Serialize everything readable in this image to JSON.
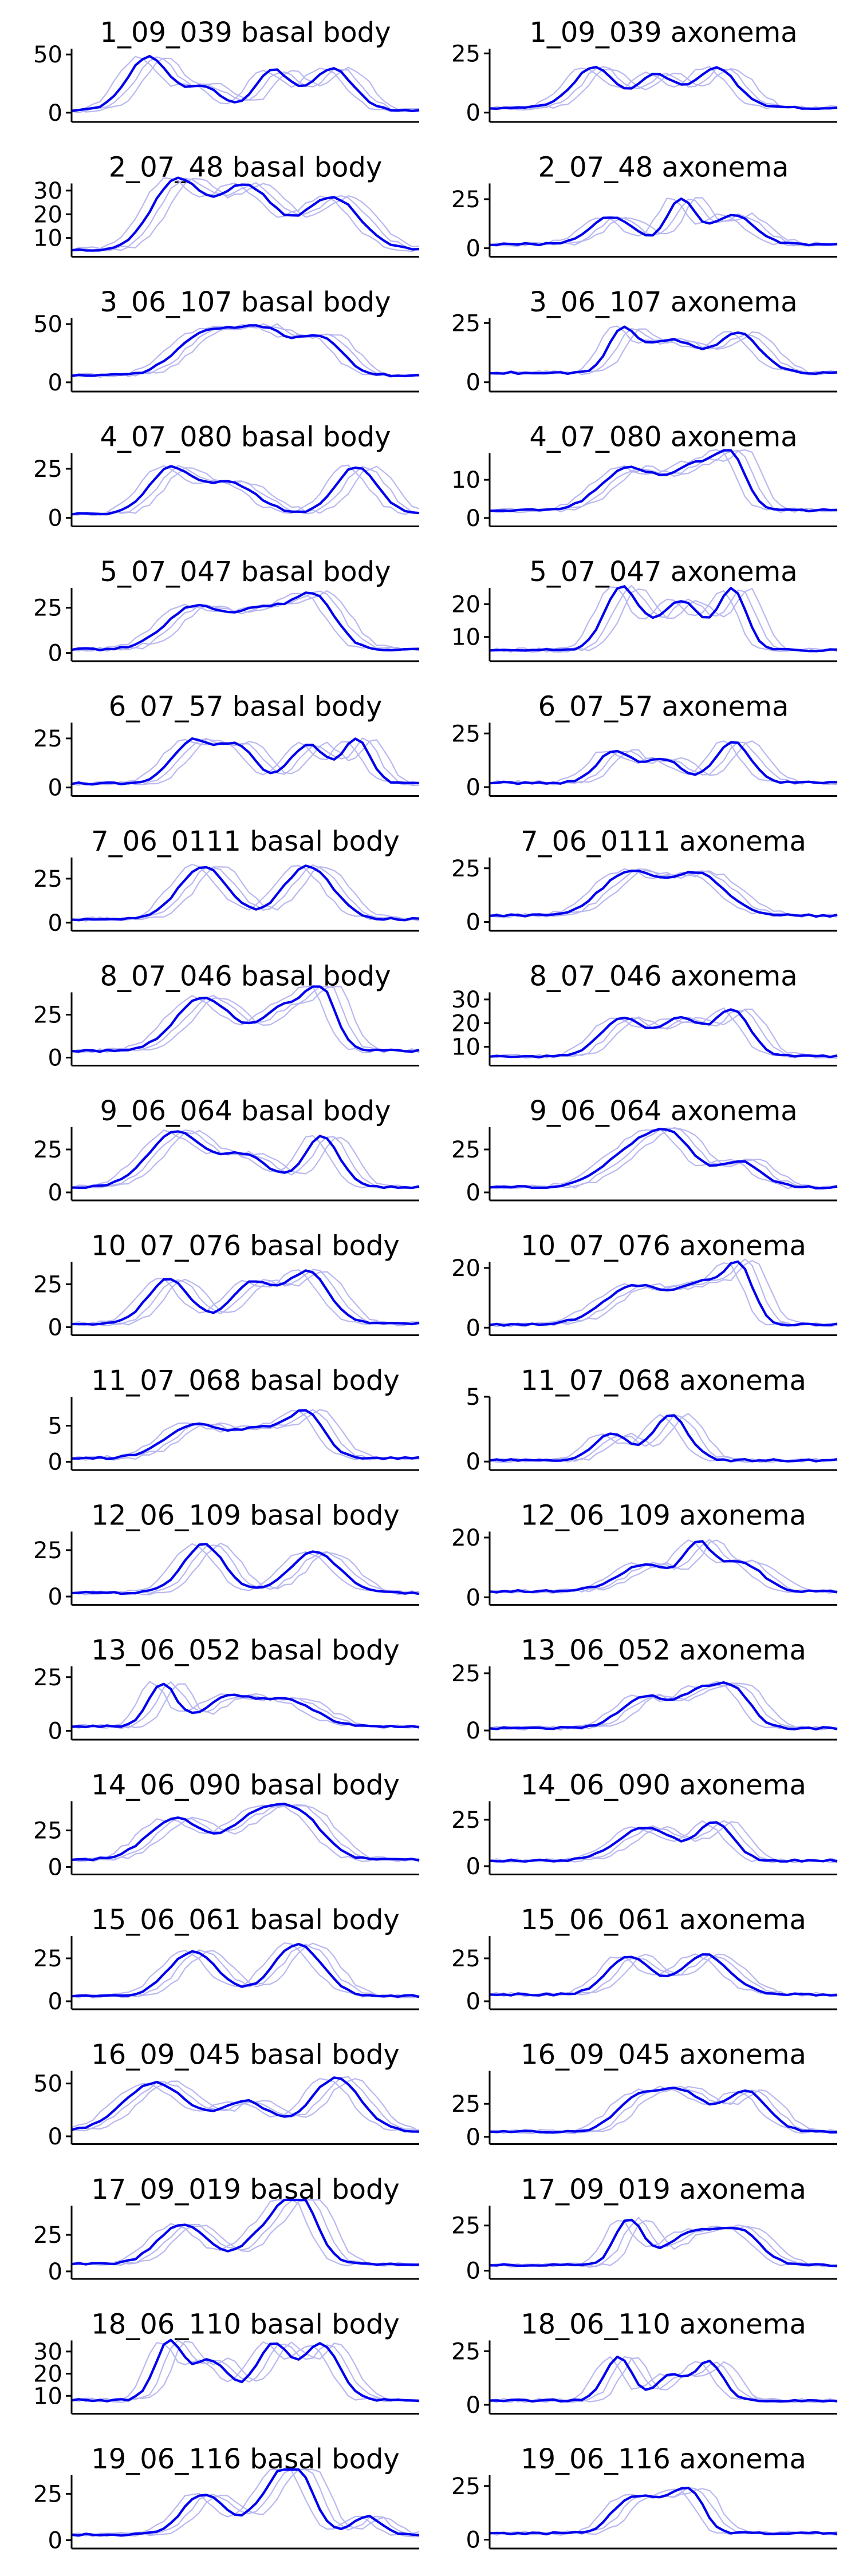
{
  "figure": {
    "colors": {
      "mean": "#0000ee",
      "replicate": "#b8b8f0",
      "axis": "#000000"
    }
  },
  "chart_data": [
    {
      "type": "line",
      "title": "1_09_039 basal body",
      "yticks": [
        0,
        50
      ],
      "ylim": [
        -4,
        55
      ],
      "xlim": [
        0,
        100
      ],
      "n": 50,
      "peaks": [
        [
          22,
          46,
          6
        ],
        [
          38,
          20,
          5
        ],
        [
          58,
          34,
          5
        ],
        [
          75,
          36,
          6
        ]
      ],
      "base": 2
    },
    {
      "type": "line",
      "title": "1_09_039 axonema",
      "yticks": [
        0,
        25
      ],
      "ylim": [
        -2,
        27
      ],
      "xlim": [
        0,
        100
      ],
      "n": 50,
      "peaks": [
        [
          30,
          17,
          6
        ],
        [
          48,
          14,
          5
        ],
        [
          65,
          17,
          6
        ]
      ],
      "base": 2
    },
    {
      "type": "line",
      "title": "2_07_48 basal body",
      "yticks": [
        10,
        20,
        30
      ],
      "ylim": [
        4,
        33
      ],
      "xlim": [
        0,
        100
      ],
      "n": 50,
      "peaks": [
        [
          30,
          29,
          7
        ],
        [
          50,
          27,
          8
        ],
        [
          75,
          22,
          8
        ]
      ],
      "base": 5
    },
    {
      "type": "line",
      "title": "2_07_48 axonema",
      "yticks": [
        0,
        25
      ],
      "ylim": [
        -2,
        33
      ],
      "xlim": [
        0,
        100
      ],
      "n": 50,
      "peaks": [
        [
          35,
          14,
          6
        ],
        [
          55,
          23,
          4
        ],
        [
          70,
          15,
          6
        ]
      ],
      "base": 2
    },
    {
      "type": "line",
      "title": "3_06_107 basal body",
      "yticks": [
        0,
        50
      ],
      "ylim": [
        -4,
        55
      ],
      "xlim": [
        0,
        100
      ],
      "n": 50,
      "peaks": [
        [
          38,
          34,
          8
        ],
        [
          55,
          38,
          8
        ],
        [
          72,
          30,
          6
        ]
      ],
      "base": 6
    },
    {
      "type": "line",
      "title": "3_06_107 axonema",
      "yticks": [
        0,
        25
      ],
      "ylim": [
        -2,
        27
      ],
      "xlim": [
        0,
        100
      ],
      "n": 50,
      "peaks": [
        [
          38,
          16,
          4
        ],
        [
          52,
          14,
          8
        ],
        [
          72,
          16,
          6
        ]
      ],
      "base": 4
    },
    {
      "type": "line",
      "title": "4_07_080 basal body",
      "yticks": [
        0,
        25
      ],
      "ylim": [
        -2,
        33
      ],
      "xlim": [
        0,
        100
      ],
      "n": 50,
      "peaks": [
        [
          28,
          22,
          6
        ],
        [
          45,
          16,
          8
        ],
        [
          82,
          24,
          6
        ]
      ],
      "base": 2
    },
    {
      "type": "line",
      "title": "4_07_080 axonema",
      "yticks": [
        0,
        10
      ],
      "ylim": [
        -1,
        17
      ],
      "xlim": [
        0,
        100
      ],
      "n": 50,
      "peaks": [
        [
          40,
          11,
          8
        ],
        [
          60,
          12,
          7
        ],
        [
          70,
          11,
          4
        ]
      ],
      "base": 2
    },
    {
      "type": "line",
      "title": "5_07_047 basal body",
      "yticks": [
        0,
        25
      ],
      "ylim": [
        -2,
        36
      ],
      "xlim": [
        0,
        100
      ],
      "n": 50,
      "peaks": [
        [
          35,
          23,
          8
        ],
        [
          55,
          22,
          8
        ],
        [
          70,
          27,
          6
        ]
      ],
      "base": 2
    },
    {
      "type": "line",
      "title": "5_07_047 axonema",
      "yticks": [
        10,
        20
      ],
      "ylim": [
        4,
        25
      ],
      "xlim": [
        0,
        100
      ],
      "n": 50,
      "peaks": [
        [
          38,
          19,
          5
        ],
        [
          55,
          15,
          6
        ],
        [
          70,
          18,
          4
        ]
      ],
      "base": 6
    },
    {
      "type": "line",
      "title": "6_07_57 basal body",
      "yticks": [
        0,
        25
      ],
      "ylim": [
        -2,
        33
      ],
      "xlim": [
        0,
        100
      ],
      "n": 50,
      "peaks": [
        [
          35,
          22,
          6
        ],
        [
          48,
          18,
          5
        ],
        [
          68,
          20,
          5
        ],
        [
          82,
          22,
          4
        ]
      ],
      "base": 2
    },
    {
      "type": "line",
      "title": "6_07_57 axonema",
      "yticks": [
        0,
        25
      ],
      "ylim": [
        -2,
        30
      ],
      "xlim": [
        0,
        100
      ],
      "n": 50,
      "peaks": [
        [
          36,
          15,
          5
        ],
        [
          50,
          11,
          5
        ],
        [
          70,
          19,
          5
        ]
      ],
      "base": 2
    },
    {
      "type": "line",
      "title": "7_06_0111 basal body",
      "yticks": [
        0,
        25
      ],
      "ylim": [
        -2,
        37
      ],
      "xlim": [
        0,
        100
      ],
      "n": 50,
      "peaks": [
        [
          38,
          30,
          7
        ],
        [
          68,
          30,
          7
        ]
      ],
      "base": 2
    },
    {
      "type": "line",
      "title": "7_06_0111 axonema",
      "yticks": [
        0,
        25
      ],
      "ylim": [
        -2,
        30
      ],
      "xlim": [
        0,
        100
      ],
      "n": 50,
      "peaks": [
        [
          40,
          20,
          8
        ],
        [
          60,
          19,
          8
        ]
      ],
      "base": 3
    },
    {
      "type": "line",
      "title": "8_07_046 basal body",
      "yticks": [
        0,
        25
      ],
      "ylim": [
        -2,
        38
      ],
      "xlim": [
        0,
        100
      ],
      "n": 50,
      "peaks": [
        [
          38,
          31,
          8
        ],
        [
          62,
          26,
          7
        ],
        [
          72,
          30,
          4
        ]
      ],
      "base": 4
    },
    {
      "type": "line",
      "title": "8_07_046 axonema",
      "yticks": [
        10,
        20,
        30
      ],
      "ylim": [
        4,
        33
      ],
      "xlim": [
        0,
        100
      ],
      "n": 50,
      "peaks": [
        [
          38,
          16,
          6
        ],
        [
          55,
          16,
          6
        ],
        [
          70,
          19,
          5
        ]
      ],
      "base": 6
    },
    {
      "type": "line",
      "title": "9_06_064 basal body",
      "yticks": [
        0,
        25
      ],
      "ylim": [
        -2,
        38
      ],
      "xlim": [
        0,
        100
      ],
      "n": 50,
      "peaks": [
        [
          30,
          32,
          8
        ],
        [
          50,
          18,
          7
        ],
        [
          72,
          30,
          5
        ]
      ],
      "base": 3
    },
    {
      "type": "line",
      "title": "9_06_064 axonema",
      "yticks": [
        0,
        25
      ],
      "ylim": [
        -2,
        38
      ],
      "xlim": [
        0,
        100
      ],
      "n": 50,
      "peaks": [
        [
          40,
          18,
          8
        ],
        [
          52,
          27,
          7
        ],
        [
          72,
          15,
          6
        ]
      ],
      "base": 3
    },
    {
      "type": "line",
      "title": "10_07_076 basal body",
      "yticks": [
        0,
        25
      ],
      "ylim": [
        -2,
        38
      ],
      "xlim": [
        0,
        100
      ],
      "n": 50,
      "peaks": [
        [
          28,
          26,
          6
        ],
        [
          52,
          24,
          6
        ],
        [
          68,
          30,
          6
        ]
      ],
      "base": 2
    },
    {
      "type": "line",
      "title": "10_07_076 axonema",
      "yticks": [
        0,
        20
      ],
      "ylim": [
        -1,
        22
      ],
      "xlim": [
        0,
        100
      ],
      "n": 50,
      "peaks": [
        [
          42,
          13,
          9
        ],
        [
          62,
          13,
          7
        ],
        [
          72,
          16,
          4
        ]
      ],
      "base": 1
    },
    {
      "type": "line",
      "title": "11_07_068 basal body",
      "yticks": [
        0,
        5
      ],
      "ylim": [
        -0.5,
        9
      ],
      "xlim": [
        0,
        100
      ],
      "n": 50,
      "peaks": [
        [
          35,
          4.5,
          8
        ],
        [
          55,
          4,
          8
        ],
        [
          68,
          5.5,
          5
        ]
      ],
      "base": 0.5
    },
    {
      "type": "line",
      "title": "11_07_068 axonema",
      "yticks": [
        0,
        5
      ],
      "ylim": [
        -0.3,
        5
      ],
      "xlim": [
        0,
        100
      ],
      "n": 50,
      "peaks": [
        [
          35,
          2,
          5
        ],
        [
          52,
          3.5,
          5
        ]
      ],
      "base": 0.1
    },
    {
      "type": "line",
      "title": "12_06_109 basal body",
      "yticks": [
        0,
        25
      ],
      "ylim": [
        -2,
        35
      ],
      "xlim": [
        0,
        100
      ],
      "n": 50,
      "peaks": [
        [
          38,
          26,
          6
        ],
        [
          70,
          22,
          7
        ]
      ],
      "base": 2
    },
    {
      "type": "line",
      "title": "12_06_109 axonema",
      "yticks": [
        0,
        20
      ],
      "ylim": [
        -1,
        22
      ],
      "xlim": [
        0,
        100
      ],
      "n": 50,
      "peaks": [
        [
          45,
          9,
          8
        ],
        [
          60,
          14,
          4
        ],
        [
          72,
          10,
          6
        ]
      ],
      "base": 2
    },
    {
      "type": "line",
      "title": "13_06_052 basal body",
      "yticks": [
        0,
        25
      ],
      "ylim": [
        -2,
        30
      ],
      "xlim": [
        0,
        100
      ],
      "n": 50,
      "peaks": [
        [
          26,
          20,
          4
        ],
        [
          45,
          13,
          7
        ],
        [
          62,
          12,
          8
        ]
      ],
      "base": 2
    },
    {
      "type": "line",
      "title": "13_06_052 axonema",
      "yticks": [
        0,
        25
      ],
      "ylim": [
        -2,
        28
      ],
      "xlim": [
        0,
        100
      ],
      "n": 50,
      "peaks": [
        [
          45,
          14,
          7
        ],
        [
          60,
          14,
          5
        ],
        [
          70,
          17,
          5
        ]
      ],
      "base": 1
    },
    {
      "type": "line",
      "title": "14_06_090 basal body",
      "yticks": [
        0,
        25
      ],
      "ylim": [
        -2,
        45
      ],
      "xlim": [
        0,
        100
      ],
      "n": 50,
      "peaks": [
        [
          30,
          28,
          8
        ],
        [
          52,
          26,
          7
        ],
        [
          65,
          31,
          7
        ]
      ],
      "base": 5
    },
    {
      "type": "line",
      "title": "14_06_090 axonema",
      "yticks": [
        0,
        25
      ],
      "ylim": [
        -2,
        35
      ],
      "xlim": [
        0,
        100
      ],
      "n": 50,
      "peaks": [
        [
          45,
          18,
          8
        ],
        [
          65,
          20,
          5
        ]
      ],
      "base": 3
    },
    {
      "type": "line",
      "title": "15_06_061 basal body",
      "yticks": [
        0,
        25
      ],
      "ylim": [
        -2,
        38
      ],
      "xlim": [
        0,
        100
      ],
      "n": 50,
      "peaks": [
        [
          35,
          26,
          7
        ],
        [
          65,
          30,
          7
        ]
      ],
      "base": 3
    },
    {
      "type": "line",
      "title": "15_06_061 axonema",
      "yticks": [
        0,
        25
      ],
      "ylim": [
        -2,
        38
      ],
      "xlim": [
        0,
        100
      ],
      "n": 50,
      "peaks": [
        [
          40,
          22,
          6
        ],
        [
          62,
          23,
          7
        ]
      ],
      "base": 4
    },
    {
      "type": "line",
      "title": "16_09_045 basal body",
      "yticks": [
        0,
        50
      ],
      "ylim": [
        -3,
        62
      ],
      "xlim": [
        0,
        100
      ],
      "n": 50,
      "peaks": [
        [
          24,
          46,
          9
        ],
        [
          50,
          28,
          7
        ],
        [
          76,
          50,
          7
        ]
      ],
      "base": 5
    },
    {
      "type": "line",
      "title": "16_09_045 axonema",
      "yticks": [
        0,
        25
      ],
      "ylim": [
        -2,
        50
      ],
      "xlim": [
        0,
        100
      ],
      "n": 50,
      "peaks": [
        [
          42,
          22,
          6
        ],
        [
          55,
          30,
          7
        ],
        [
          74,
          30,
          6
        ]
      ],
      "base": 4
    },
    {
      "type": "line",
      "title": "17_09_019 basal body",
      "yticks": [
        0,
        25
      ],
      "ylim": [
        -2,
        45
      ],
      "xlim": [
        0,
        100
      ],
      "n": 50,
      "peaks": [
        [
          32,
          27,
          7
        ],
        [
          58,
          26,
          7
        ],
        [
          66,
          35,
          5
        ]
      ],
      "base": 5
    },
    {
      "type": "line",
      "title": "17_09_019 axonema",
      "yticks": [
        0,
        25
      ],
      "ylim": [
        -2,
        36
      ],
      "xlim": [
        0,
        100
      ],
      "n": 50,
      "peaks": [
        [
          40,
          25,
          4
        ],
        [
          58,
          18,
          7
        ],
        [
          72,
          18,
          6
        ]
      ],
      "base": 3
    },
    {
      "type": "line",
      "title": "18_06_110 basal body",
      "yticks": [
        10,
        20,
        30
      ],
      "ylim": [
        4,
        35
      ],
      "xlim": [
        0,
        100
      ],
      "n": 50,
      "peaks": [
        [
          28,
          26,
          4
        ],
        [
          40,
          18,
          5
        ],
        [
          58,
          25,
          5
        ],
        [
          72,
          25,
          5
        ]
      ],
      "base": 8
    },
    {
      "type": "line",
      "title": "18_06_110 axonema",
      "yticks": [
        0,
        25
      ],
      "ylim": [
        -2,
        30
      ],
      "xlim": [
        0,
        100
      ],
      "n": 50,
      "peaks": [
        [
          37,
          20,
          4
        ],
        [
          52,
          12,
          4
        ],
        [
          63,
          18,
          4
        ]
      ],
      "base": 2
    },
    {
      "type": "line",
      "title": "19_06_116 basal body",
      "yticks": [
        0,
        25
      ],
      "ylim": [
        -2,
        35
      ],
      "xlim": [
        0,
        100
      ],
      "n": 50,
      "peaks": [
        [
          38,
          22,
          6
        ],
        [
          58,
          20,
          6
        ],
        [
          65,
          28,
          5
        ],
        [
          85,
          10,
          4
        ]
      ],
      "base": 3
    },
    {
      "type": "line",
      "title": "19_06_116 axonema",
      "yticks": [
        0,
        25
      ],
      "ylim": [
        -2,
        30
      ],
      "xlim": [
        0,
        100
      ],
      "n": 50,
      "peaks": [
        [
          40,
          15,
          5
        ],
        [
          50,
          13,
          5
        ],
        [
          58,
          17,
          4
        ]
      ],
      "base": 3
    }
  ]
}
